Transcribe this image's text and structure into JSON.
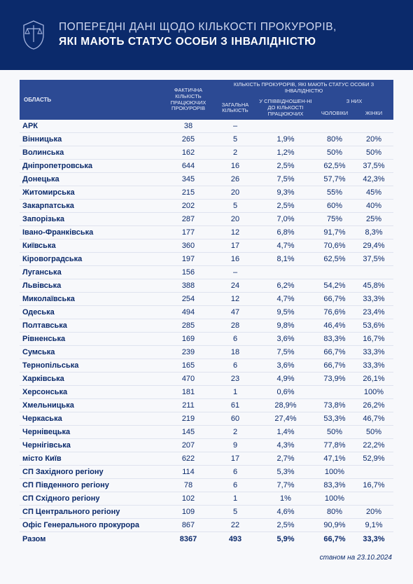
{
  "title": {
    "line1": "ПОПЕРЕДНІ ДАНІ ЩОДО КІЛЬКОСТІ ПРОКУРОРІВ,",
    "line2": "ЯКІ МАЮТЬ СТАТУС ОСОБИ З ІНВАЛІДНІСТЮ"
  },
  "headers": {
    "region": "ОБЛАСТЬ",
    "actual": "ФАКТИЧНА КІЛЬКІСТЬ ПРАЦЮЮЧИХ ПРОКУРОРІВ",
    "group": "КІЛЬКІСТЬ ПРОКУРОРІВ, ЯКІ МАЮТЬ СТАТУС ОСОБИ З ІНВАЛІДНІСТЮ",
    "zagal": "ЗАГАЛЬНА КІЛЬКІСТЬ",
    "ratio": "У СПІВВІДНОШЕН-НІ ДО КІЛЬКОСТІ ПРАЦЮЮЧИХ",
    "gender_group": "З НИХ",
    "men": "ЧОЛОВІКИ",
    "women": "ЖІНКИ"
  },
  "rows": [
    {
      "region": "АРК",
      "total": "38",
      "zag": "–",
      "ratio": "",
      "m": "",
      "f": ""
    },
    {
      "region": "Вінницька",
      "total": "265",
      "zag": "5",
      "ratio": "1,9%",
      "m": "80%",
      "f": "20%"
    },
    {
      "region": "Волинська",
      "total": "162",
      "zag": "2",
      "ratio": "1,2%",
      "m": "50%",
      "f": "50%"
    },
    {
      "region": "Дніпропетровська",
      "total": "644",
      "zag": "16",
      "ratio": "2,5%",
      "m": "62,5%",
      "f": "37,5%"
    },
    {
      "region": "Донецька",
      "total": "345",
      "zag": "26",
      "ratio": "7,5%",
      "m": "57,7%",
      "f": "42,3%"
    },
    {
      "region": "Житомирська",
      "total": "215",
      "zag": "20",
      "ratio": "9,3%",
      "m": "55%",
      "f": "45%"
    },
    {
      "region": "Закарпатська",
      "total": "202",
      "zag": "5",
      "ratio": "2,5%",
      "m": "60%",
      "f": "40%"
    },
    {
      "region": "Запорізька",
      "total": "287",
      "zag": "20",
      "ratio": "7,0%",
      "m": "75%",
      "f": "25%"
    },
    {
      "region": "Івано-Франківська",
      "total": "177",
      "zag": "12",
      "ratio": "6,8%",
      "m": "91,7%",
      "f": "8,3%"
    },
    {
      "region": "Київська",
      "total": "360",
      "zag": "17",
      "ratio": "4,7%",
      "m": "70,6%",
      "f": "29,4%"
    },
    {
      "region": "Кіровоградська",
      "total": "197",
      "zag": "16",
      "ratio": "8,1%",
      "m": "62,5%",
      "f": "37,5%"
    },
    {
      "region": "Луганська",
      "total": "156",
      "zag": "–",
      "ratio": "",
      "m": "",
      "f": ""
    },
    {
      "region": "Львівська",
      "total": "388",
      "zag": "24",
      "ratio": "6,2%",
      "m": "54,2%",
      "f": "45,8%"
    },
    {
      "region": "Миколаївська",
      "total": "254",
      "zag": "12",
      "ratio": "4,7%",
      "m": "66,7%",
      "f": "33,3%"
    },
    {
      "region": "Одеська",
      "total": "494",
      "zag": "47",
      "ratio": "9,5%",
      "m": "76,6%",
      "f": "23,4%"
    },
    {
      "region": "Полтавська",
      "total": "285",
      "zag": "28",
      "ratio": "9,8%",
      "m": "46,4%",
      "f": "53,6%"
    },
    {
      "region": "Рівненська",
      "total": "169",
      "zag": "6",
      "ratio": "3,6%",
      "m": "83,3%",
      "f": "16,7%"
    },
    {
      "region": "Сумська",
      "total": "239",
      "zag": "18",
      "ratio": "7,5%",
      "m": "66,7%",
      "f": "33,3%"
    },
    {
      "region": "Тернопільська",
      "total": "165",
      "zag": "6",
      "ratio": "3,6%",
      "m": "66,7%",
      "f": "33,3%"
    },
    {
      "region": "Харківська",
      "total": "470",
      "zag": "23",
      "ratio": "4,9%",
      "m": "73,9%",
      "f": "26,1%"
    },
    {
      "region": "Херсонська",
      "total": "181",
      "zag": "1",
      "ratio": "0,6%",
      "m": "",
      "f": "100%"
    },
    {
      "region": "Хмельницька",
      "total": "211",
      "zag": "61",
      "ratio": "28,9%",
      "m": "73,8%",
      "f": "26,2%"
    },
    {
      "region": "Черкаська",
      "total": "219",
      "zag": "60",
      "ratio": "27,4%",
      "m": "53,3%",
      "f": "46,7%"
    },
    {
      "region": "Чернівецька",
      "total": "145",
      "zag": "2",
      "ratio": "1,4%",
      "m": "50%",
      "f": "50%"
    },
    {
      "region": "Чернігівська",
      "total": "207",
      "zag": "9",
      "ratio": "4,3%",
      "m": "77,8%",
      "f": "22,2%"
    },
    {
      "region": "місто Київ",
      "total": "622",
      "zag": "17",
      "ratio": "2,7%",
      "m": "47,1%",
      "f": "52,9%"
    },
    {
      "region": "СП Західного регіону",
      "total": "114",
      "zag": "6",
      "ratio": "5,3%",
      "m": "100%",
      "f": ""
    },
    {
      "region": "СП Південного регіону",
      "total": "78",
      "zag": "6",
      "ratio": "7,7%",
      "m": "83,3%",
      "f": "16,7%"
    },
    {
      "region": "СП Східного регіону",
      "total": "102",
      "zag": "1",
      "ratio": "1%",
      "m": "100%",
      "f": ""
    },
    {
      "region": "СП Центрального регіону",
      "total": "109",
      "zag": "5",
      "ratio": "4,6%",
      "m": "80%",
      "f": "20%"
    },
    {
      "region": "Офіс Генерального прокурора",
      "total": "867",
      "zag": "22",
      "ratio": "2,5%",
      "m": "90,9%",
      "f": "9,1%"
    }
  ],
  "total_row": {
    "region": "Разом",
    "total": "8367",
    "zag": "493",
    "ratio": "5,9%",
    "m": "66,7%",
    "f": "33,3%"
  },
  "footer": "станом на 23.10.2024",
  "colors": {
    "header_bg": "#0b2a6b",
    "thead_bg": "#2c4a94",
    "text": "#0b2a6b",
    "row_border": "#dfe3ef"
  }
}
